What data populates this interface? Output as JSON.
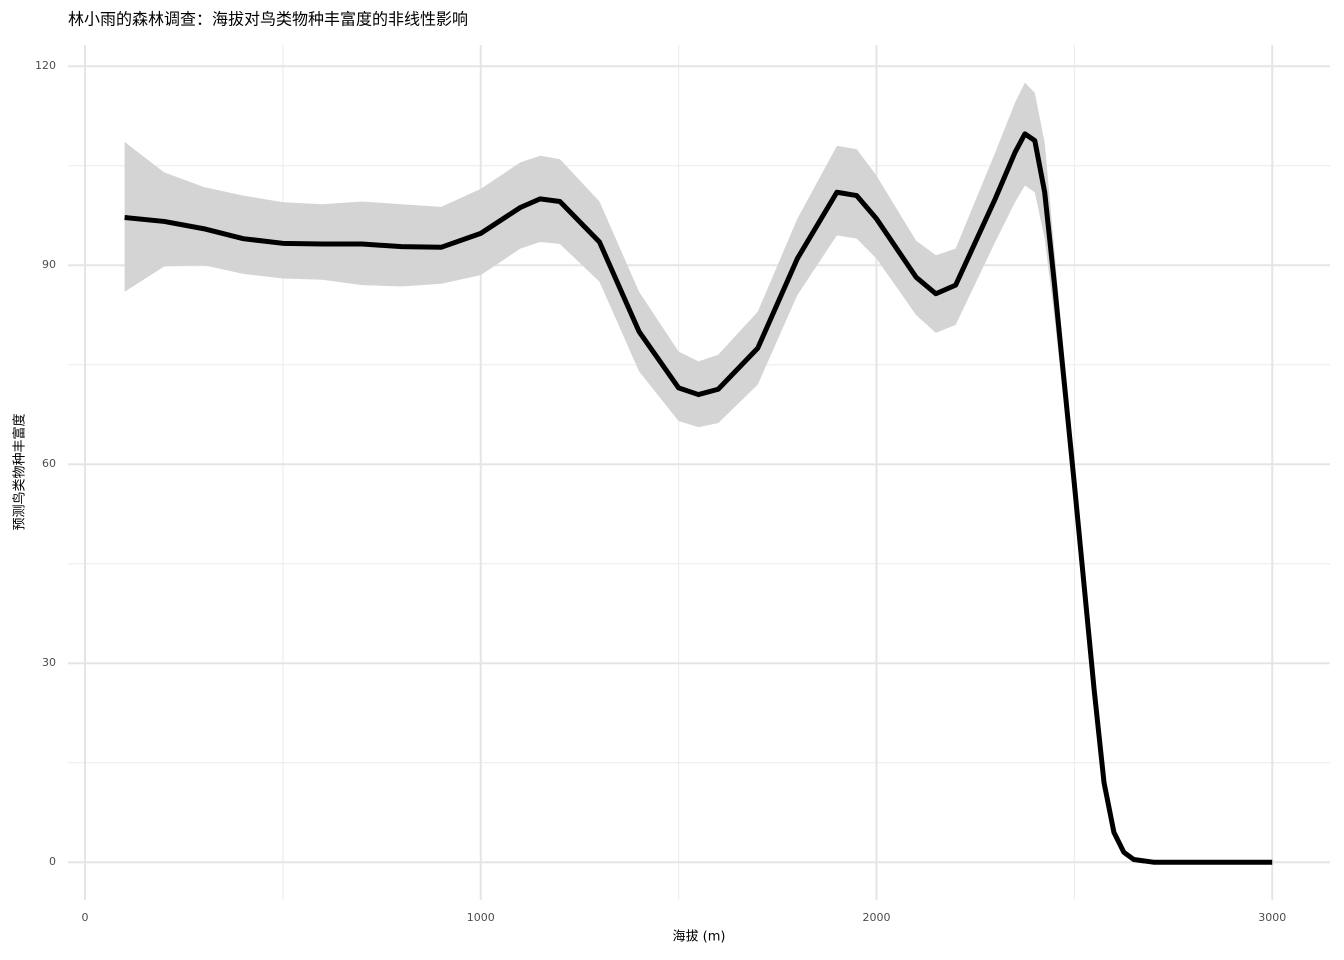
{
  "chart_data": {
    "type": "line",
    "title": "林小雨的森林调查：海拔对鸟类物种丰富度的非线性影响",
    "xlabel": "海拔 (m)",
    "ylabel": "预测鸟类物种丰富度",
    "x": [
      100,
      200,
      300,
      400,
      500,
      600,
      700,
      800,
      900,
      1000,
      1100,
      1150,
      1200,
      1300,
      1400,
      1500,
      1550,
      1600,
      1700,
      1800,
      1900,
      1950,
      2000,
      2100,
      2150,
      2200,
      2300,
      2350,
      2375,
      2400,
      2425,
      2450,
      2500,
      2550,
      2575,
      2600,
      2625,
      2650,
      2700,
      3000
    ],
    "values": [
      97.2,
      96.6,
      95.5,
      94,
      93.3,
      93.2,
      93.2,
      92.8,
      92.7,
      94.8,
      98.7,
      100,
      99.6,
      93.5,
      80,
      71.5,
      70.5,
      71.3,
      77.5,
      91,
      101,
      100.5,
      97,
      88.2,
      85.7,
      87,
      100,
      107,
      109.8,
      108.8,
      101,
      87,
      57,
      26,
      12,
      4.5,
      1.5,
      0.4,
      0,
      0
    ],
    "lower": [
      86,
      89.8,
      90,
      88.7,
      88,
      87.8,
      87,
      86.8,
      87.2,
      88.5,
      92.5,
      93.5,
      93.2,
      87.5,
      74,
      66.5,
      65.6,
      66.2,
      72,
      85.5,
      94.5,
      94,
      91,
      82.5,
      79.8,
      81,
      93.5,
      99.5,
      102,
      101,
      94,
      82,
      55,
      25,
      11,
      4,
      1,
      0.2,
      0,
      0
    ],
    "upper": [
      108.6,
      104,
      101.8,
      100.5,
      99.5,
      99.2,
      99.6,
      99.2,
      98.8,
      101.5,
      105.5,
      106.5,
      106,
      99.6,
      86,
      77,
      75.5,
      76.5,
      83,
      97,
      108,
      107.5,
      103.5,
      93.7,
      91.5,
      92.5,
      107,
      114.5,
      117.5,
      116,
      108.5,
      92,
      59,
      27,
      13,
      5,
      2,
      0.6,
      0,
      0
    ],
    "color": "#000000",
    "band_color": "#d4d4d4",
    "xlim": [
      -43,
      3146
    ],
    "ylim": [
      -5.7,
      123.2
    ],
    "xticks": [
      0,
      1000,
      2000,
      3000
    ],
    "yticks": [
      0,
      30,
      60,
      90,
      120
    ],
    "grid": true
  }
}
